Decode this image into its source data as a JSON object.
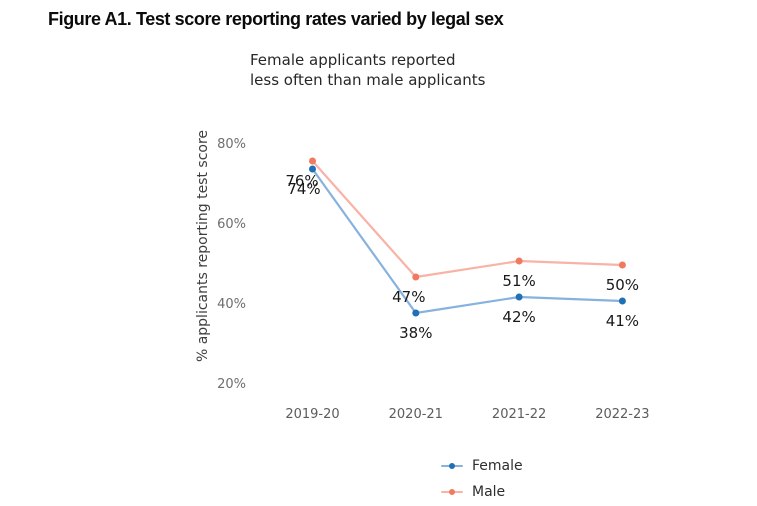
{
  "figure": {
    "title": "Figure A1. Test score reporting rates varied by legal sex",
    "subtitle": [
      "Female applicants reported",
      "less often than male applicants"
    ]
  },
  "chart_data": {
    "type": "line",
    "categories": [
      "2019-20",
      "2020-21",
      "2021-22",
      "2022-23"
    ],
    "series": [
      {
        "name": "Female",
        "values": [
          74,
          38,
          42,
          41
        ],
        "point_labels": [
          "74%",
          "38%",
          "42%",
          "41%"
        ],
        "line_color": "#87b2de",
        "marker_color": "#1f70b4"
      },
      {
        "name": "Male",
        "values": [
          76,
          47,
          51,
          50
        ],
        "point_labels": [
          "76%",
          "47%",
          "51%",
          "50%"
        ],
        "line_color": "#f8b3a6",
        "marker_color": "#ee7a5f"
      }
    ],
    "xlabel": "",
    "ylabel": "% applicants reporting test score",
    "yticks": [
      {
        "label": "80%",
        "value": 80
      },
      {
        "label": "60%",
        "value": 60
      },
      {
        "label": "40%",
        "value": 40
      },
      {
        "label": "20%",
        "value": 20
      }
    ],
    "ylim": [
      15,
      87
    ],
    "grid": false,
    "legend": [
      "Female",
      "Male"
    ],
    "legend_position": "bottom-center",
    "label_color": "#191919"
  }
}
